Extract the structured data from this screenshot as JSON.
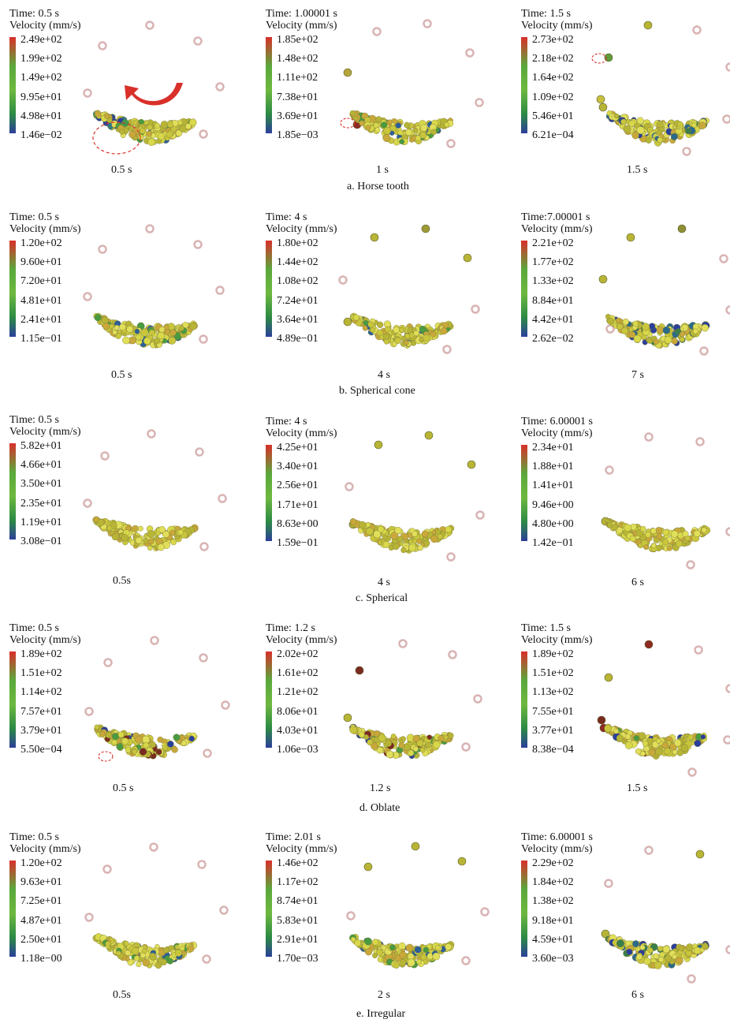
{
  "velocity_label": "Velocity (mm/s)",
  "rows": [
    {
      "caption": "a. Horse tooth",
      "panels": [
        {
          "time": "Time: 0.5 s",
          "ticks": [
            "2.49e+02",
            "1.99e+02",
            "1.49e+02",
            "9.95e+01",
            "4.98e+01",
            "1.46e−02"
          ],
          "label": "0.5 s"
        },
        {
          "time": "Time: 1.00001 s",
          "ticks": [
            "1.85e+02",
            "1.48e+02",
            "1.11e+02",
            "7.38e+01",
            "3.69e+01",
            "1.85e−03"
          ],
          "label": "1 s"
        },
        {
          "time": "Time: 1.5 s",
          "ticks": [
            "2.73e+02",
            "2.18e+02",
            "1.64e+02",
            "1.09e+02",
            "5.46e+01",
            "6.21e−04"
          ],
          "label": "1.5 s"
        }
      ]
    },
    {
      "caption": "b. Spherical cone",
      "panels": [
        {
          "time": "Time: 0.5 s",
          "ticks": [
            "1.20e+02",
            "9.60e+01",
            "7.20e+01",
            "4.81e+01",
            "2.41e+01",
            "1.15e−01"
          ],
          "label": "0.5 s"
        },
        {
          "time": "Time: 4 s",
          "ticks": [
            "1.80e+02",
            "1.44e+02",
            "1.08e+02",
            "7.24e+01",
            "3.64e+01",
            "4.89e−01"
          ],
          "label": "4 s"
        },
        {
          "time": "Time:7.00001 s",
          "ticks": [
            "2.21e+02",
            "1.77e+02",
            "1.33e+02",
            "8.84e+01",
            "4.42e+01",
            "2.62e−02"
          ],
          "label": "7 s"
        }
      ]
    },
    {
      "caption": "c. Spherical",
      "panels": [
        {
          "time": "Time: 0.5 s",
          "ticks": [
            "5.82e+01",
            "4.66e+01",
            "3.50e+01",
            "2.35e+01",
            "1.19e+01",
            "3.08e−01"
          ],
          "label": "0.5s"
        },
        {
          "time": "Time: 4 s",
          "ticks": [
            "4.25e+01",
            "3.40e+01",
            "2.56e+01",
            "1.71e+01",
            "8.63e+00",
            "1.59e−01"
          ],
          "label": "4 s"
        },
        {
          "time": "Time: 6.00001 s",
          "ticks": [
            "2.34e+01",
            "1.88e+01",
            "1.41e+01",
            "9.46e+00",
            "4.80e+00",
            "1.42e−01"
          ],
          "label": "6 s"
        }
      ]
    },
    {
      "caption": "d. Oblate",
      "panels": [
        {
          "time": "Time: 0.5 s",
          "ticks": [
            "1.89e+02",
            "1.51e+02",
            "1.14e+02",
            "7.57e+01",
            "3.79e+01",
            "5.50e−04"
          ],
          "label": "0.5 s"
        },
        {
          "time": "Time: 1.2 s",
          "ticks": [
            "2.02e+02",
            "1.61e+02",
            "1.21e+02",
            "8.06e+01",
            "4.03e+01",
            "1.06e−03"
          ],
          "label": "1.2 s"
        },
        {
          "time": "Time: 1.5 s",
          "ticks": [
            "1.89e+02",
            "1.51e+02",
            "1.13e+02",
            "7.55e+01",
            "3.77e+01",
            "8.38e−04"
          ],
          "label": "1.5 s"
        }
      ]
    },
    {
      "caption": "e. Irregular",
      "panels": [
        {
          "time": "Time: 0.5 s",
          "ticks": [
            "1.20e+02",
            "9.63e+01",
            "7.25e+01",
            "4.87e+01",
            "2.50e+01",
            "1.18e−00"
          ],
          "label": "0.5s"
        },
        {
          "time": "Time: 2.01 s",
          "ticks": [
            "1.46e+02",
            "1.17e+02",
            "8.74e+01",
            "5.83e+01",
            "2.91e+01",
            "1.70e−03"
          ],
          "label": "2 s"
        },
        {
          "time": "Time: 6.00001 s",
          "ticks": [
            "2.29e+02",
            "1.84e+02",
            "1.38e+02",
            "9.18e+01",
            "4.59e+01",
            "3.60e−03"
          ],
          "label": "6 s"
        }
      ]
    }
  ]
}
